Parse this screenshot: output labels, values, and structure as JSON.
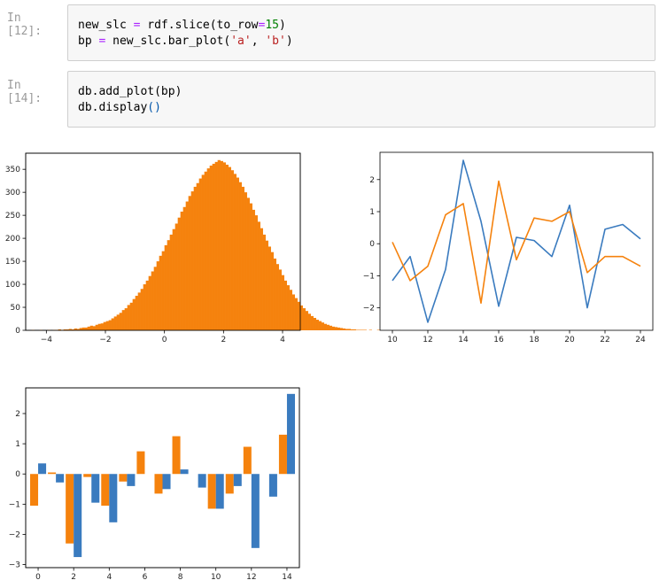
{
  "cells": [
    {
      "prompt": "In [12]:",
      "lines": [
        [
          {
            "t": "new_slc "
          },
          {
            "t": "=",
            "c": "kw-purple"
          },
          {
            "t": " rdf.slice(to_row"
          },
          {
            "t": "=",
            "c": "kw-purple"
          },
          {
            "t": "15",
            "c": "kw-green"
          },
          {
            "t": ")"
          }
        ],
        [
          {
            "t": "bp "
          },
          {
            "t": "=",
            "c": "kw-purple"
          },
          {
            "t": " new_slc.bar_plot("
          },
          {
            "t": "'a'",
            "c": "kw-red"
          },
          {
            "t": ", "
          },
          {
            "t": "'b'",
            "c": "kw-red"
          },
          {
            "t": ")"
          }
        ]
      ]
    },
    {
      "prompt": "In [14]:",
      "lines": [
        [
          {
            "t": "db.add_plot(bp)"
          }
        ],
        [
          {
            "t": "db.display"
          },
          {
            "t": "()",
            "c": "kw-blue"
          }
        ]
      ]
    }
  ],
  "colors": {
    "blue": "#3a7bbf",
    "orange": "#f5820d",
    "axis": "#000000"
  },
  "chart_data": [
    {
      "type": "bar",
      "subtype": "histogram",
      "xlim": [
        -4.7,
        4.6
      ],
      "ylim": [
        0,
        385
      ],
      "xticks": [
        -4,
        -2,
        0,
        2,
        4
      ],
      "yticks": [
        0,
        50,
        100,
        150,
        200,
        250,
        300,
        350
      ],
      "bin_start": -4.5,
      "bin_width": 0.09,
      "values": [
        1,
        0,
        0,
        1,
        0,
        0,
        1,
        0,
        1,
        1,
        2,
        1,
        2,
        2,
        3,
        2,
        4,
        3,
        5,
        6,
        6,
        8,
        10,
        9,
        12,
        14,
        15,
        18,
        20,
        22,
        26,
        30,
        34,
        38,
        44,
        48,
        55,
        60,
        68,
        75,
        82,
        90,
        100,
        108,
        118,
        128,
        138,
        150,
        162,
        172,
        185,
        196,
        208,
        220,
        232,
        245,
        258,
        268,
        280,
        292,
        302,
        312,
        320,
        330,
        338,
        345,
        352,
        358,
        362,
        366,
        370,
        368,
        365,
        360,
        355,
        348,
        340,
        332,
        322,
        312,
        300,
        288,
        276,
        262,
        250,
        236,
        222,
        208,
        195,
        182,
        170,
        156,
        144,
        132,
        120,
        108,
        98,
        88,
        78,
        70,
        62,
        54,
        48,
        42,
        36,
        31,
        27,
        23,
        20,
        17,
        14,
        12,
        10,
        8,
        7,
        6,
        5,
        4,
        3,
        3,
        2,
        2,
        1,
        1,
        1,
        1,
        0,
        1,
        0,
        0,
        1
      ]
    },
    {
      "type": "line",
      "x": [
        10,
        11,
        12,
        13,
        14,
        15,
        16,
        17,
        18,
        19,
        20,
        21,
        22,
        23,
        24
      ],
      "xlim": [
        9.3,
        24.7
      ],
      "ylim": [
        -2.7,
        2.85
      ],
      "xticks": [
        10,
        12,
        14,
        16,
        18,
        20,
        22,
        24
      ],
      "yticks": [
        -2,
        -1,
        0,
        1,
        2
      ],
      "series": [
        {
          "color": "blue",
          "values": [
            -1.15,
            -0.4,
            -2.45,
            -0.8,
            2.6,
            0.7,
            -1.95,
            0.2,
            0.1,
            -0.4,
            1.2,
            -2.0,
            0.45,
            0.6,
            0.15
          ]
        },
        {
          "color": "orange",
          "values": [
            0.05,
            -1.15,
            -0.7,
            0.9,
            1.25,
            -1.85,
            1.95,
            -0.5,
            0.8,
            0.7,
            1.0,
            -0.9,
            -0.4,
            -0.4,
            -0.7
          ]
        }
      ]
    },
    {
      "type": "bar",
      "subtype": "grouped",
      "categories": [
        0,
        1,
        2,
        3,
        4,
        5,
        6,
        7,
        8,
        9,
        10,
        11,
        12,
        13,
        14
      ],
      "xlim": [
        -0.7,
        14.7
      ],
      "ylim": [
        -3.1,
        2.85
      ],
      "xticks": [
        0,
        2,
        4,
        6,
        8,
        10,
        12,
        14
      ],
      "yticks": [
        -3,
        -2,
        -1,
        0,
        1,
        2
      ],
      "series": [
        {
          "color": "orange",
          "values": [
            -1.05,
            0.05,
            -2.3,
            -0.1,
            -1.05,
            -0.25,
            0.75,
            -0.65,
            1.25,
            0.0,
            -1.15,
            -0.65,
            0.9,
            0.0,
            1.3
          ]
        },
        {
          "color": "blue",
          "values": [
            0.35,
            -0.28,
            -2.75,
            -0.95,
            -1.6,
            -0.4,
            0.0,
            -0.5,
            0.15,
            -0.45,
            -1.15,
            -0.4,
            -2.45,
            -0.75,
            2.65
          ]
        }
      ]
    }
  ]
}
